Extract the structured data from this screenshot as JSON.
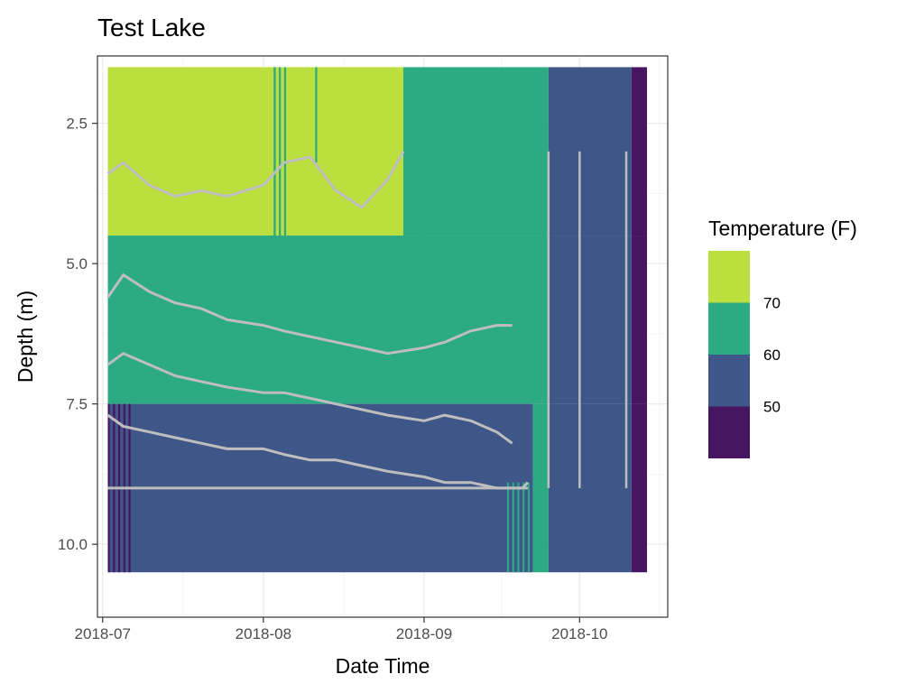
{
  "chart_data": {
    "type": "heatmap",
    "title": "Test Lake",
    "xlabel": "Date Time",
    "ylabel": "Depth (m)",
    "x_range": [
      "2018-06-30",
      "2018-10-18"
    ],
    "y_range": [
      1.3,
      11.3
    ],
    "y_reversed": true,
    "x_ticks": [
      {
        "date": "2018-07-01",
        "label": "2018-07"
      },
      {
        "date": "2018-08-01",
        "label": "2018-08"
      },
      {
        "date": "2018-09-01",
        "label": "2018-09"
      },
      {
        "date": "2018-10-01",
        "label": "2018-10"
      }
    ],
    "y_ticks": [
      {
        "value": 2.5,
        "label": "2.5"
      },
      {
        "value": 5.0,
        "label": "5.0"
      },
      {
        "value": 7.5,
        "label": "7.5"
      },
      {
        "value": 10.0,
        "label": "10.0"
      }
    ],
    "grid": true,
    "legend": {
      "title": "Temperature (F)",
      "position": "right",
      "bins": [
        {
          "name": "above-70",
          "color": "#BBDF3E"
        },
        {
          "name": "60-70",
          "color": "#2BAA83"
        },
        {
          "name": "50-60",
          "color": "#3F5689"
        },
        {
          "name": "below-50",
          "color": "#471662"
        }
      ],
      "break_labels": [
        "70",
        "60",
        "50"
      ]
    },
    "cells": [
      {
        "x0": "2018-07-02",
        "x1": "2018-08-28",
        "d0": 1.5,
        "d1": 4.5,
        "bin": 0
      },
      {
        "x0": "2018-08-28",
        "x1": "2018-09-25",
        "d0": 1.5,
        "d1": 4.5,
        "bin": 1
      },
      {
        "x0": "2018-09-25",
        "x1": "2018-10-11",
        "d0": 1.5,
        "d1": 4.5,
        "bin": 2
      },
      {
        "x0": "2018-10-11",
        "x1": "2018-10-14",
        "d0": 1.5,
        "d1": 4.5,
        "bin": 3
      },
      {
        "x0": "2018-07-02",
        "x1": "2018-09-25",
        "d0": 4.5,
        "d1": 7.5,
        "bin": 1
      },
      {
        "x0": "2018-09-25",
        "x1": "2018-10-11",
        "d0": 4.5,
        "d1": 7.5,
        "bin": 2
      },
      {
        "x0": "2018-10-11",
        "x1": "2018-10-14",
        "d0": 4.5,
        "d1": 7.5,
        "bin": 3
      },
      {
        "x0": "2018-07-02",
        "x1": "2018-09-22",
        "d0": 7.5,
        "d1": 10.5,
        "bin": 2
      },
      {
        "x0": "2018-09-22",
        "x1": "2018-09-25",
        "d0": 7.5,
        "d1": 10.5,
        "bin": 1
      },
      {
        "x0": "2018-09-25",
        "x1": "2018-10-11",
        "d0": 7.5,
        "d1": 10.5,
        "bin": 2
      },
      {
        "x0": "2018-10-11",
        "x1": "2018-10-14",
        "d0": 7.5,
        "d1": 10.5,
        "bin": 3
      }
    ],
    "cell_stripes": [
      {
        "x": "2018-08-03",
        "d0": 1.5,
        "d1": 4.5,
        "bin": 1
      },
      {
        "x": "2018-08-03",
        "d0": 1.5,
        "d1": 4.5,
        "bin": 1
      },
      {
        "x": "2018-08-04",
        "d0": 1.5,
        "d1": 4.5,
        "bin": 1
      },
      {
        "x": "2018-08-05",
        "d0": 1.5,
        "d1": 4.5,
        "bin": 1
      },
      {
        "x": "2018-08-11",
        "d0": 1.5,
        "d1": 3.2,
        "bin": 1
      },
      {
        "x": "2018-07-02",
        "d0": 7.5,
        "d1": 10.5,
        "bin": 3
      },
      {
        "x": "2018-07-03",
        "d0": 7.5,
        "d1": 10.5,
        "bin": 3
      },
      {
        "x": "2018-07-04",
        "d0": 7.5,
        "d1": 10.5,
        "bin": 3
      },
      {
        "x": "2018-07-05",
        "d0": 7.5,
        "d1": 10.5,
        "bin": 3
      },
      {
        "x": "2018-07-06",
        "d0": 7.5,
        "d1": 10.5,
        "bin": 3
      },
      {
        "x": "2018-09-17",
        "d0": 8.9,
        "d1": 10.5,
        "bin": 1
      },
      {
        "x": "2018-09-18",
        "d0": 8.9,
        "d1": 10.5,
        "bin": 1
      },
      {
        "x": "2018-09-19",
        "d0": 8.9,
        "d1": 10.5,
        "bin": 1
      },
      {
        "x": "2018-09-20",
        "d0": 8.9,
        "d1": 10.5,
        "bin": 1
      },
      {
        "x": "2018-09-21",
        "d0": 8.9,
        "d1": 10.5,
        "bin": 1
      }
    ],
    "series": [
      {
        "color": "#BEBEBE",
        "x": [
          "2018-07-02",
          "2018-07-05",
          "2018-07-10",
          "2018-07-15",
          "2018-07-20",
          "2018-07-25",
          "2018-08-01",
          "2018-08-05",
          "2018-08-10",
          "2018-08-15",
          "2018-08-20",
          "2018-08-25",
          "2018-08-28"
        ],
        "depth": [
          3.4,
          3.2,
          3.6,
          3.8,
          3.7,
          3.8,
          3.6,
          3.2,
          3.1,
          3.7,
          4.0,
          3.5,
          3.0
        ]
      },
      {
        "color": "#BEBEBE",
        "x": [
          "2018-07-02",
          "2018-07-05",
          "2018-07-10",
          "2018-07-15",
          "2018-07-20",
          "2018-07-25",
          "2018-08-01",
          "2018-08-05",
          "2018-08-10",
          "2018-08-15",
          "2018-08-20",
          "2018-08-25",
          "2018-09-01",
          "2018-09-05",
          "2018-09-10",
          "2018-09-15",
          "2018-09-18"
        ],
        "depth": [
          5.6,
          5.2,
          5.5,
          5.7,
          5.8,
          6.0,
          6.1,
          6.2,
          6.3,
          6.4,
          6.5,
          6.6,
          6.5,
          6.4,
          6.2,
          6.1,
          6.1
        ]
      },
      {
        "color": "#BEBEBE",
        "x": [
          "2018-07-02",
          "2018-07-05",
          "2018-07-10",
          "2018-07-15",
          "2018-07-20",
          "2018-07-25",
          "2018-08-01",
          "2018-08-05",
          "2018-08-10",
          "2018-08-15",
          "2018-08-20",
          "2018-08-25",
          "2018-09-01",
          "2018-09-05",
          "2018-09-10",
          "2018-09-15",
          "2018-09-18"
        ],
        "depth": [
          6.8,
          6.6,
          6.8,
          7.0,
          7.1,
          7.2,
          7.3,
          7.3,
          7.4,
          7.5,
          7.6,
          7.7,
          7.8,
          7.7,
          7.8,
          8.0,
          8.2
        ]
      },
      {
        "color": "#BEBEBE",
        "x": [
          "2018-07-02",
          "2018-07-05",
          "2018-07-10",
          "2018-07-15",
          "2018-07-20",
          "2018-07-25",
          "2018-08-01",
          "2018-08-05",
          "2018-08-10",
          "2018-08-15",
          "2018-08-20",
          "2018-08-25",
          "2018-09-01",
          "2018-09-05",
          "2018-09-10",
          "2018-09-15",
          "2018-09-20",
          "2018-09-21"
        ],
        "depth": [
          7.7,
          7.9,
          8.0,
          8.1,
          8.2,
          8.3,
          8.3,
          8.4,
          8.5,
          8.5,
          8.6,
          8.7,
          8.8,
          8.9,
          8.9,
          9.0,
          9.0,
          8.9
        ]
      },
      {
        "color": "#BEBEBE",
        "x": [
          "2018-07-02",
          "2018-07-05",
          "2018-07-10",
          "2018-07-15",
          "2018-07-20",
          "2018-07-25",
          "2018-08-01",
          "2018-08-05",
          "2018-08-10",
          "2018-08-15",
          "2018-08-20",
          "2018-08-25",
          "2018-09-01",
          "2018-09-05",
          "2018-09-10",
          "2018-09-15",
          "2018-09-20",
          "2018-09-21"
        ],
        "depth": [
          9.0,
          9.0,
          9.0,
          9.0,
          9.0,
          9.0,
          9.0,
          9.0,
          9.0,
          9.0,
          9.0,
          9.0,
          9.0,
          9.0,
          9.0,
          9.0,
          9.0,
          9.0
        ]
      }
    ],
    "vertical_lines": [
      {
        "x": "2018-09-25",
        "d0": 3.0,
        "d1": 9.0
      },
      {
        "x": "2018-10-01",
        "d0": 3.0,
        "d1": 9.0
      },
      {
        "x": "2018-10-10",
        "d0": 3.0,
        "d1": 9.0
      }
    ]
  }
}
